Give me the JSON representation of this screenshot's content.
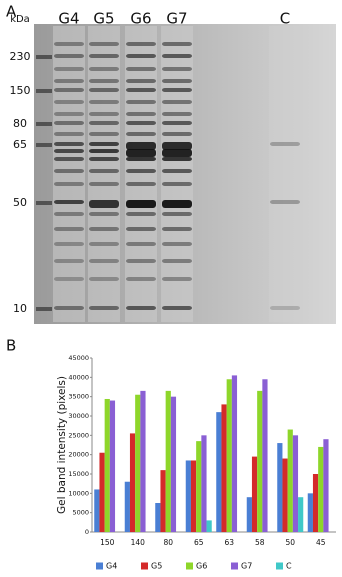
{
  "panel_a": {
    "label": "A",
    "unit": "kDa",
    "lanes": [
      "G4",
      "G5",
      "G6",
      "G7",
      "C"
    ],
    "markers": [
      "230",
      "150",
      "80",
      "65",
      "50",
      "10"
    ]
  },
  "panel_b": {
    "label": "B"
  },
  "chart_data": {
    "type": "bar",
    "y_label": "Gel band intensity (pixels)",
    "categories": [
      "150",
      "140",
      "80",
      "65",
      "63",
      "58",
      "50",
      "45"
    ],
    "series": [
      {
        "name": "G4",
        "color": "#4a7fd4",
        "values": [
          11000,
          13000,
          7500,
          18500,
          31000,
          9000,
          23000,
          10000
        ]
      },
      {
        "name": "G5",
        "color": "#d42a2a",
        "values": [
          20500,
          25500,
          16000,
          18500,
          33000,
          19500,
          19000,
          15000
        ]
      },
      {
        "name": "G6",
        "color": "#8ed62a",
        "values": [
          34400,
          35500,
          36500,
          23500,
          39500,
          36500,
          26500,
          22000
        ]
      },
      {
        "name": "G7",
        "color": "#8a5fd4",
        "values": [
          34000,
          36500,
          35000,
          25000,
          40500,
          39500,
          25000,
          24000
        ]
      },
      {
        "name": "C",
        "color": "#40c8c8",
        "values": [
          null,
          null,
          null,
          3000,
          null,
          null,
          9000,
          null
        ]
      }
    ],
    "ylim": [
      0,
      45000
    ],
    "yticks": [
      0,
      5000,
      10000,
      15000,
      20000,
      25000,
      30000,
      35000,
      40000,
      45000
    ],
    "legend": "bottom"
  }
}
